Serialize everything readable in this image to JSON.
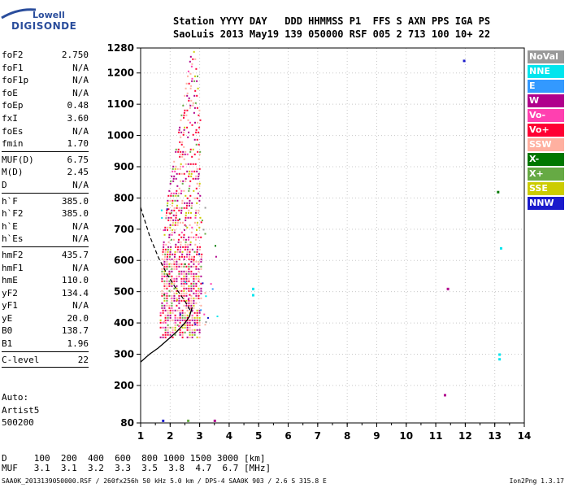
{
  "logo": {
    "line1": "Lowell",
    "line2": "DIGISONDE"
  },
  "header": {
    "line1": "Station YYYY DAY   DDD HHMMSS P1  FFS S AXN PPS IGA PS",
    "line2": "SaoLuis 2013 May19 139 050000 RSF 005 2 713 100 10+ 22"
  },
  "params": [
    {
      "name": "foF2",
      "value": "2.750"
    },
    {
      "name": "foF1",
      "value": "N/A"
    },
    {
      "name": "foF1p",
      "value": "N/A"
    },
    {
      "name": "foE",
      "value": "N/A"
    },
    {
      "name": "foEp",
      "value": "0.48"
    },
    {
      "name": "fxI",
      "value": "3.60"
    },
    {
      "name": "foEs",
      "value": "N/A"
    },
    {
      "name": "fmin",
      "value": "1.70"
    },
    {
      "sep": true
    },
    {
      "name": "MUF(D)",
      "value": "6.75"
    },
    {
      "name": "M(D)",
      "value": "2.45"
    },
    {
      "name": "D",
      "value": "N/A"
    },
    {
      "sep": true
    },
    {
      "name": "h`F",
      "value": "385.0"
    },
    {
      "name": "h`F2",
      "value": "385.0"
    },
    {
      "name": "h`E",
      "value": "N/A"
    },
    {
      "name": "h`Es",
      "value": "N/A"
    },
    {
      "sep": true
    },
    {
      "name": "hmF2",
      "value": "435.7"
    },
    {
      "name": "hmF1",
      "value": "N/A"
    },
    {
      "name": "hmE",
      "value": "110.0"
    },
    {
      "name": "yF2",
      "value": "134.4"
    },
    {
      "name": "yF1",
      "value": "N/A"
    },
    {
      "name": "yE",
      "value": "20.0"
    },
    {
      "name": "B0",
      "value": "138.7"
    },
    {
      "name": "B1",
      "value": "1.96"
    },
    {
      "sep": true
    },
    {
      "name": "C-level",
      "value": "22"
    },
    {
      "sep": true
    }
  ],
  "auto": {
    "l1": "Auto:",
    "l2": "Artist5",
    "l3": "500200"
  },
  "legend": [
    {
      "label": "NoVal",
      "color": "#999999"
    },
    {
      "label": "NNE",
      "color": "#00e5ee"
    },
    {
      "label": "E",
      "color": "#3399ff"
    },
    {
      "label": "W",
      "color": "#b0008c"
    },
    {
      "label": "Vo-",
      "color": "#ff40b0"
    },
    {
      "label": "Vo+",
      "color": "#ff0033"
    },
    {
      "label": "SSW",
      "color": "#ffb0a0"
    },
    {
      "label": "X-",
      "color": "#007700"
    },
    {
      "label": "X+",
      "color": "#66aa44"
    },
    {
      "label": "SSE",
      "color": "#cccc00"
    },
    {
      "label": "NNW",
      "color": "#1a1acc"
    }
  ],
  "chart_data": {
    "type": "scatter",
    "title": "",
    "xlabel": "",
    "ylabel": "",
    "xlim": [
      1,
      14
    ],
    "ylim": [
      80,
      1280
    ],
    "x_ticks": [
      "1",
      "2",
      "3",
      "4",
      "5",
      "6",
      "7",
      "8",
      "9",
      "10",
      "11",
      "12",
      "13",
      "14"
    ],
    "y_ticks": [
      "80",
      "200",
      "300",
      "400",
      "500",
      "600",
      "700",
      "800",
      "900",
      "1000",
      "1100",
      "1200",
      "1280"
    ],
    "y_tick_values": [
      80,
      200,
      300,
      400,
      500,
      600,
      700,
      800,
      900,
      1000,
      1100,
      1200,
      1280
    ],
    "grid": true,
    "ionogram_trace": {
      "x_range_mhz": [
        1.7,
        3.6
      ],
      "height_range_km": [
        350,
        1270
      ]
    },
    "isolated_points": [
      {
        "x": 4.8,
        "y": 510,
        "color": "#00e5ee"
      },
      {
        "x": 4.8,
        "y": 490,
        "color": "#00e5ee"
      },
      {
        "x": 11.4,
        "y": 510,
        "color": "#b0008c"
      },
      {
        "x": 11.3,
        "y": 170,
        "color": "#b0008c"
      },
      {
        "x": 11.95,
        "y": 1240,
        "color": "#1a1acc"
      },
      {
        "x": 13.1,
        "y": 820,
        "color": "#007700"
      },
      {
        "x": 13.2,
        "y": 640,
        "color": "#00e5ee"
      },
      {
        "x": 13.15,
        "y": 300,
        "color": "#00e5ee"
      },
      {
        "x": 13.15,
        "y": 285,
        "color": "#00e5ee"
      },
      {
        "x": 1.75,
        "y": 88,
        "color": "#1a1acc"
      },
      {
        "x": 2.6,
        "y": 88,
        "color": "#66aa44"
      },
      {
        "x": 3.5,
        "y": 88,
        "color": "#b0008c"
      }
    ],
    "profile_solid": [
      [
        1.0,
        275
      ],
      [
        1.3,
        300
      ],
      [
        1.6,
        320
      ],
      [
        1.9,
        345
      ],
      [
        2.2,
        370
      ],
      [
        2.5,
        400
      ],
      [
        2.65,
        420
      ],
      [
        2.75,
        450
      ]
    ],
    "profile_dashed": [
      [
        1.0,
        770
      ],
      [
        1.3,
        680
      ],
      [
        1.6,
        610
      ],
      [
        1.9,
        555
      ],
      [
        2.2,
        510
      ],
      [
        2.5,
        470
      ],
      [
        2.65,
        445
      ],
      [
        2.75,
        435
      ]
    ]
  },
  "dmuf": {
    "line1": "D     100  200  400  600  800 1000 1500 3000 [km]",
    "line2": "MUF   3.1  3.1  3.2  3.3  3.5  3.8  4.7  6.7 [MHz]"
  },
  "footer": "SAA0K_2013139050000.RSF / 260fx256h 50 kHz 5.0 km / DPS-4 SAA0K 903 / 2.6 S 315.8 E",
  "version": "Ion2Png 1.3.17"
}
